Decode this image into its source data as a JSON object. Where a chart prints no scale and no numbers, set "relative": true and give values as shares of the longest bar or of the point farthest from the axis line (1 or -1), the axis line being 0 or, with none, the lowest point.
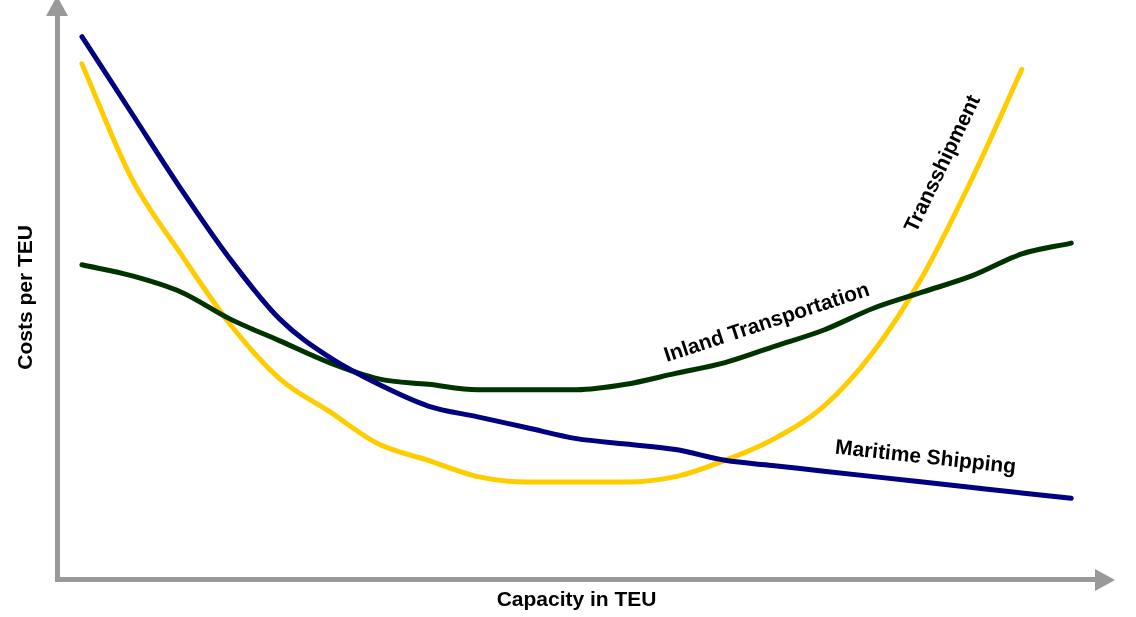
{
  "chart_data": {
    "type": "line",
    "relative": true,
    "xlabel": "Capacity in TEU",
    "ylabel": "Costs per TEU",
    "legend": false,
    "grid": false,
    "marker": "none",
    "line_style": "solid",
    "tick_labels": false,
    "categories": [
      null,
      null,
      null,
      null,
      null,
      null,
      null,
      null,
      null,
      null,
      null,
      null,
      null,
      null,
      null,
      null,
      null,
      null,
      null,
      null,
      null
    ],
    "series": [
      {
        "name": "Maritime Shipping",
        "color": "#000080",
        "values": [
          1.0,
          0.86,
          0.72,
          0.59,
          0.48,
          0.41,
          0.36,
          0.32,
          0.3,
          0.28,
          0.26,
          0.25,
          0.24,
          0.22,
          0.21,
          0.2,
          0.19,
          0.18,
          0.17,
          0.16,
          0.15
        ]
      },
      {
        "name": "Inland Transportation",
        "color": "#003300",
        "values": [
          0.58,
          0.56,
          0.53,
          0.48,
          0.44,
          0.4,
          0.37,
          0.36,
          0.35,
          0.35,
          0.35,
          0.36,
          0.38,
          0.4,
          0.43,
          0.46,
          0.5,
          0.53,
          0.56,
          0.6,
          0.62
        ]
      },
      {
        "name": "Transshipment",
        "color": "#ffcc00",
        "values": [
          0.95,
          0.74,
          0.6,
          0.47,
          0.37,
          0.31,
          0.25,
          0.22,
          0.19,
          0.18,
          0.18,
          0.18,
          0.19,
          0.22,
          0.26,
          0.32,
          0.42,
          0.56,
          0.74,
          0.94,
          null
        ]
      }
    ]
  }
}
